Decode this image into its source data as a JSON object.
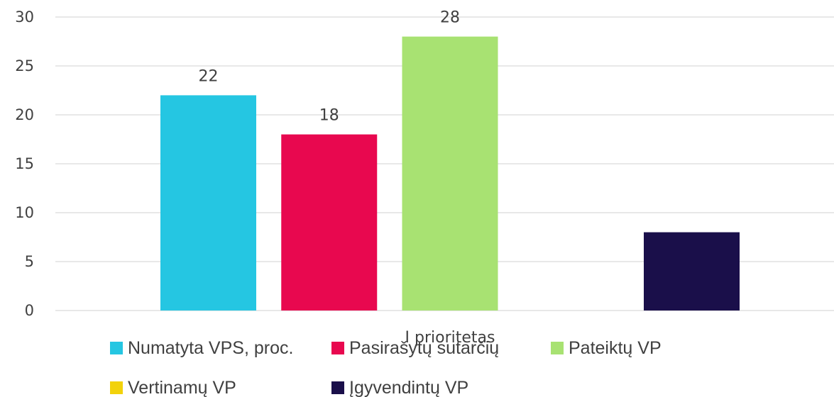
{
  "chart_data": {
    "type": "bar",
    "categories": [
      "I prioritetas"
    ],
    "series": [
      {
        "name": "Numatyta VPS, proc.",
        "values": [
          22
        ],
        "color": "#25C6E2"
      },
      {
        "name": "Pasirašytų sutarčių",
        "values": [
          18
        ],
        "color": "#E8084F"
      },
      {
        "name": "Pateiktų VP",
        "values": [
          28
        ],
        "color": "#A8E272"
      },
      {
        "name": "Vertinamų VP",
        "values": [
          0
        ],
        "color": "#F2D20B"
      },
      {
        "name": "Įgyvendintų VP",
        "values": [
          8
        ],
        "color": "#1A0F4A"
      }
    ],
    "data_labels": [
      "22",
      "18",
      "28",
      "",
      ""
    ],
    "yticks": [
      "0",
      "5",
      "10",
      "15",
      "20",
      "25",
      "30"
    ],
    "ylim": [
      0,
      30
    ],
    "grid": true,
    "legend_position": "bottom"
  }
}
